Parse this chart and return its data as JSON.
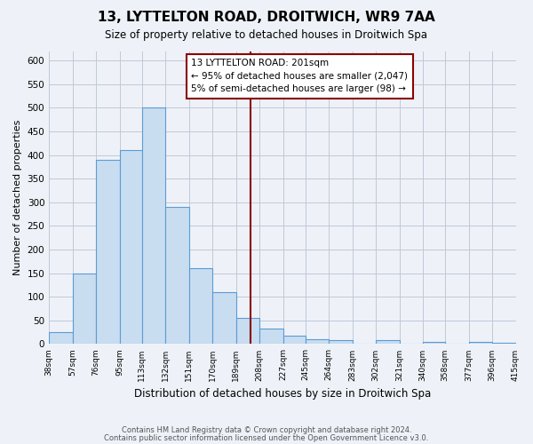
{
  "title": "13, LYTTELTON ROAD, DROITWICH, WR9 7AA",
  "subtitle": "Size of property relative to detached houses in Droitwich Spa",
  "xlabel": "Distribution of detached houses by size in Droitwich Spa",
  "ylabel": "Number of detached properties",
  "bar_values": [
    25,
    150,
    390,
    410,
    500,
    290,
    160,
    110,
    55,
    33,
    18,
    10,
    8,
    0,
    8,
    0,
    5,
    0,
    5,
    3
  ],
  "bin_labels": [
    "38sqm",
    "57sqm",
    "76sqm",
    "95sqm",
    "113sqm",
    "132sqm",
    "151sqm",
    "170sqm",
    "189sqm",
    "208sqm",
    "227sqm",
    "245sqm",
    "264sqm",
    "283sqm",
    "302sqm",
    "321sqm",
    "340sqm",
    "358sqm",
    "377sqm",
    "396sqm",
    "415sqm"
  ],
  "bin_edges": [
    38,
    57,
    76,
    95,
    113,
    132,
    151,
    170,
    189,
    208,
    227,
    245,
    264,
    283,
    302,
    321,
    340,
    358,
    377,
    396,
    415
  ],
  "bar_color": "#c9ddf0",
  "bar_edge_color": "#5b9bd5",
  "grid_color": "#c0c8d8",
  "background_color": "#eef2f8",
  "property_line_x": 201,
  "property_line_color": "#8b0000",
  "annotation_title": "13 LYTTELTON ROAD: 201sqm",
  "annotation_line1": "← 95% of detached houses are smaller (2,047)",
  "annotation_line2": "5% of semi-detached houses are larger (98) →",
  "annotation_box_edge": "#8b0000",
  "annotation_bg": "#ffffff",
  "ylim": [
    0,
    620
  ],
  "yticks": [
    0,
    50,
    100,
    150,
    200,
    250,
    300,
    350,
    400,
    450,
    500,
    550,
    600
  ],
  "footer1": "Contains HM Land Registry data © Crown copyright and database right 2024.",
  "footer2": "Contains public sector information licensed under the Open Government Licence v3.0."
}
